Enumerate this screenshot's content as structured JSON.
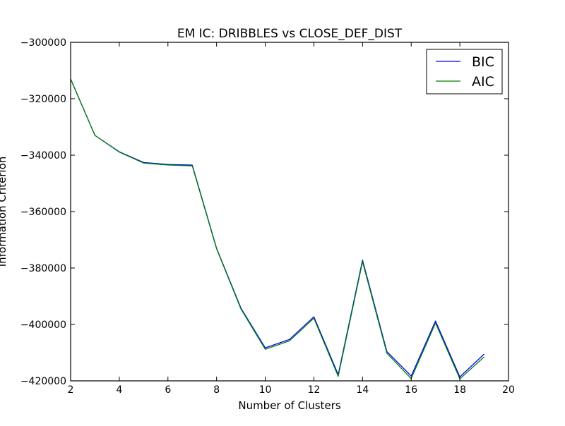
{
  "chart_data": {
    "type": "line",
    "title": "EM IC: DRIBBLES vs CLOSE_DEF_DIST",
    "xlabel": "Number of Clusters",
    "ylabel": "Information Criterion",
    "xlim": [
      2,
      20
    ],
    "ylim": [
      -420000,
      -300000
    ],
    "x_ticks": [
      2,
      4,
      6,
      8,
      10,
      12,
      14,
      16,
      18,
      20
    ],
    "y_ticks": [
      -300000,
      -320000,
      -340000,
      -360000,
      -380000,
      -400000,
      -420000
    ],
    "x_tick_labels": [
      "2",
      "4",
      "6",
      "8",
      "10",
      "12",
      "14",
      "16",
      "18",
      "20"
    ],
    "y_tick_labels": [
      "−300000",
      "−320000",
      "−340000",
      "−360000",
      "−380000",
      "−400000",
      "−420000"
    ],
    "grid": false,
    "legend": "top-right",
    "x": [
      2,
      3,
      4,
      5,
      6,
      7,
      8,
      9,
      10,
      11,
      12,
      13,
      14,
      15,
      16,
      17,
      18,
      19
    ],
    "series": [
      {
        "name": "BIC",
        "color": "#0000ff",
        "values": [
          -313000,
          -333000,
          -338800,
          -342600,
          -343300,
          -343500,
          -373000,
          -394200,
          -408300,
          -405300,
          -397300,
          -417800,
          -377200,
          -409600,
          -418300,
          -398800,
          -418600,
          -410500
        ]
      },
      {
        "name": "AIC",
        "color": "#008000",
        "values": [
          -313000,
          -333000,
          -338900,
          -342800,
          -343500,
          -343800,
          -373200,
          -394500,
          -408800,
          -405800,
          -397800,
          -418400,
          -377800,
          -410200,
          -419200,
          -399500,
          -419300,
          -411500
        ]
      }
    ]
  }
}
